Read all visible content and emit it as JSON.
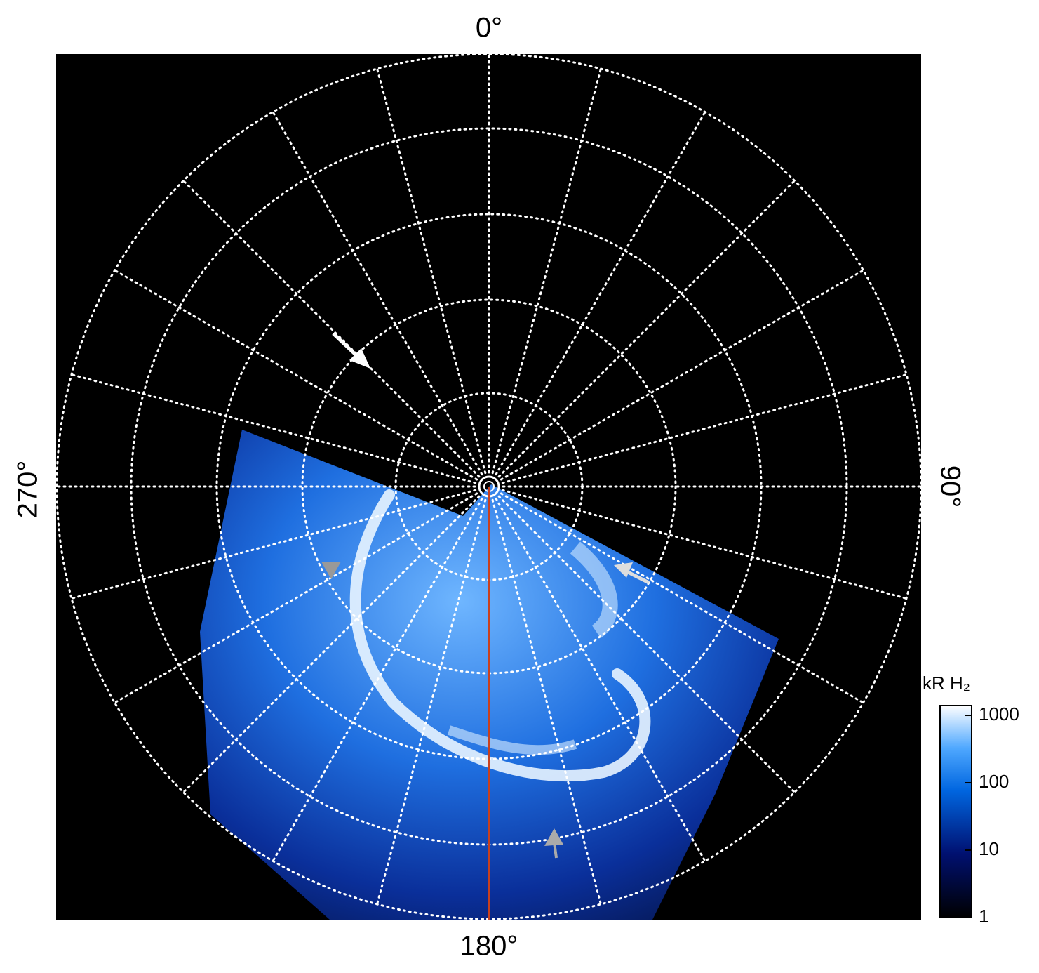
{
  "labels": {
    "top": "0°",
    "right": "90°",
    "bottom": "180°",
    "left": "270°"
  },
  "colorbar": {
    "title": "kR H₂",
    "lim": [
      1,
      1400
    ],
    "ticks": [
      1,
      10,
      100,
      1000
    ],
    "log": true
  }
}
